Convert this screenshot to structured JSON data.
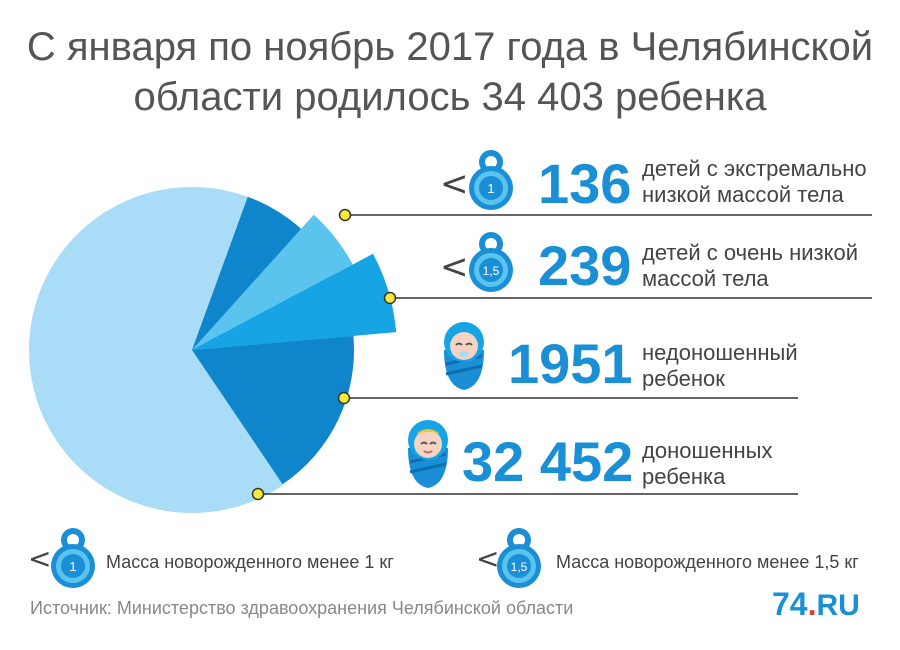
{
  "header": {
    "title_line1": "С января по ноябрь 2017 года в Челябинской",
    "title_line2": "области родилось 34 403 ребенка"
  },
  "chart_data": {
    "type": "pie",
    "title": "С января по ноябрь 2017 года в Челябинской области родилось 34 403 ребенка",
    "total": 34403,
    "slices": [
      {
        "label": "детей с экстремально низкой массой тела",
        "value": 136,
        "color": "#5bc4ee"
      },
      {
        "label": "детей с очень низкой массой тела",
        "value": 239,
        "color": "#16a4e4"
      },
      {
        "label": "недоношенный ребенок",
        "value": 1951,
        "color": "#0f86cc"
      },
      {
        "label": "доношенных ребенка",
        "value": 32452,
        "color": "#a9dcf6"
      }
    ]
  },
  "rows": [
    {
      "prefix": "<",
      "weight": "1",
      "number": "136",
      "desc1": "детей с экстремально",
      "desc2": "низкой массой тела",
      "icon": "weight-icon"
    },
    {
      "prefix": "<",
      "weight": "1,5",
      "number": "239",
      "desc1": "детей с очень низкой",
      "desc2": "массой тела",
      "icon": "weight-icon"
    },
    {
      "number": "1951",
      "desc1": "недоношенный",
      "desc2": "ребенок",
      "icon": "baby-icon"
    },
    {
      "number": "32 452",
      "desc1": "доношенных",
      "desc2": "ребенка",
      "icon": "baby-icon"
    }
  ],
  "legend": [
    {
      "prefix": "<",
      "weight": "1",
      "text": "Масса новорожденного менее 1 кг"
    },
    {
      "prefix": "<",
      "weight": "1,5",
      "text": "Масса новорожденного менее 1,5 кг"
    }
  ],
  "footer": {
    "source": "Источник: Министерство здравоохранения Челябинской области",
    "logo_num": "74",
    "logo_dot": ".",
    "logo_ru": "RU"
  },
  "colors": {
    "accent": "#1a8fd6",
    "marker_fill": "#f7e93a",
    "marker_stroke": "#333333"
  }
}
